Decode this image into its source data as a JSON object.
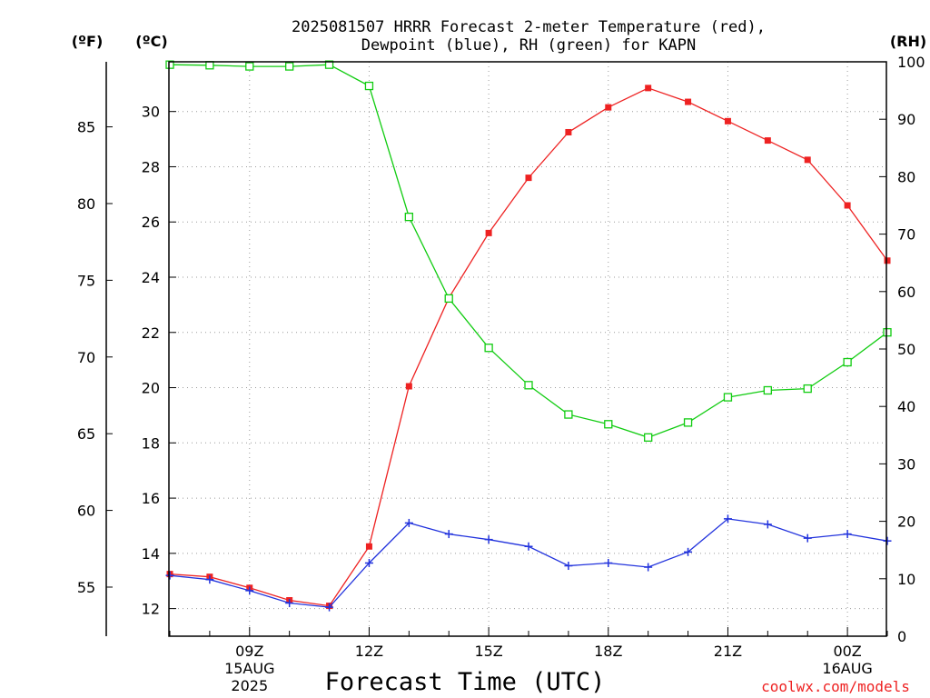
{
  "title_line1": "2025081507 HRRR Forecast 2-meter Temperature (red),",
  "title_line2": "Dewpoint (blue), RH (green) for KAPN",
  "units": {
    "fahrenheit": "(ºF)",
    "celsius": "(ºC)",
    "rh": "(RH)"
  },
  "xlabel": "Forecast Time (UTC)",
  "credit": "coolwx.com/models",
  "colors": {
    "temperature": "#ee2222",
    "dewpoint": "#2233dd",
    "rh": "#11cc11"
  },
  "chart_data": {
    "type": "line",
    "x": [
      "07Z",
      "08Z",
      "09Z",
      "10Z",
      "11Z",
      "12Z",
      "13Z",
      "14Z",
      "15Z",
      "16Z",
      "17Z",
      "18Z",
      "19Z",
      "20Z",
      "21Z",
      "22Z",
      "23Z",
      "00Z",
      "01Z"
    ],
    "x_tick_labels": [
      {
        "hour": "09Z",
        "date": "15AUG",
        "year": "2025"
      },
      {
        "hour": "12Z",
        "date": "",
        "year": ""
      },
      {
        "hour": "15Z",
        "date": "",
        "year": ""
      },
      {
        "hour": "18Z",
        "date": "",
        "year": ""
      },
      {
        "hour": "21Z",
        "date": "",
        "year": ""
      },
      {
        "hour": "00Z",
        "date": "16AUG",
        "year": ""
      }
    ],
    "y_celsius": {
      "range": [
        11.0,
        31.8
      ],
      "ticks": [
        12,
        14,
        16,
        18,
        20,
        22,
        24,
        26,
        28,
        30
      ]
    },
    "y_fahrenheit": {
      "ticks": [
        55,
        60,
        65,
        70,
        75,
        80,
        85
      ]
    },
    "y_rh": {
      "range": [
        0,
        100
      ],
      "ticks": [
        0,
        10,
        20,
        30,
        40,
        50,
        60,
        70,
        80,
        90,
        100
      ]
    },
    "grid": true,
    "series": [
      {
        "name": "Temperature",
        "axis": "celsius",
        "marker": "filled-square",
        "values": [
          13.25,
          13.15,
          12.75,
          12.3,
          12.1,
          14.25,
          20.05,
          23.25,
          25.6,
          27.6,
          29.25,
          30.15,
          30.85,
          30.35,
          29.65,
          28.95,
          28.25,
          26.6,
          24.6
        ]
      },
      {
        "name": "Dewpoint",
        "axis": "celsius",
        "marker": "plus",
        "values": [
          13.2,
          13.05,
          12.65,
          12.2,
          12.05,
          13.65,
          15.1,
          14.7,
          14.5,
          14.25,
          13.55,
          13.65,
          13.5,
          14.05,
          15.25,
          15.05,
          14.55,
          14.7,
          14.45
        ]
      },
      {
        "name": "RH",
        "axis": "rh",
        "marker": "open-square",
        "values": [
          99.5,
          99.4,
          99.2,
          99.2,
          99.5,
          95.8,
          73.0,
          58.8,
          50.2,
          43.7,
          38.6,
          36.9,
          34.6,
          37.2,
          41.6,
          42.8,
          43.1,
          47.7,
          52.9
        ]
      }
    ]
  }
}
